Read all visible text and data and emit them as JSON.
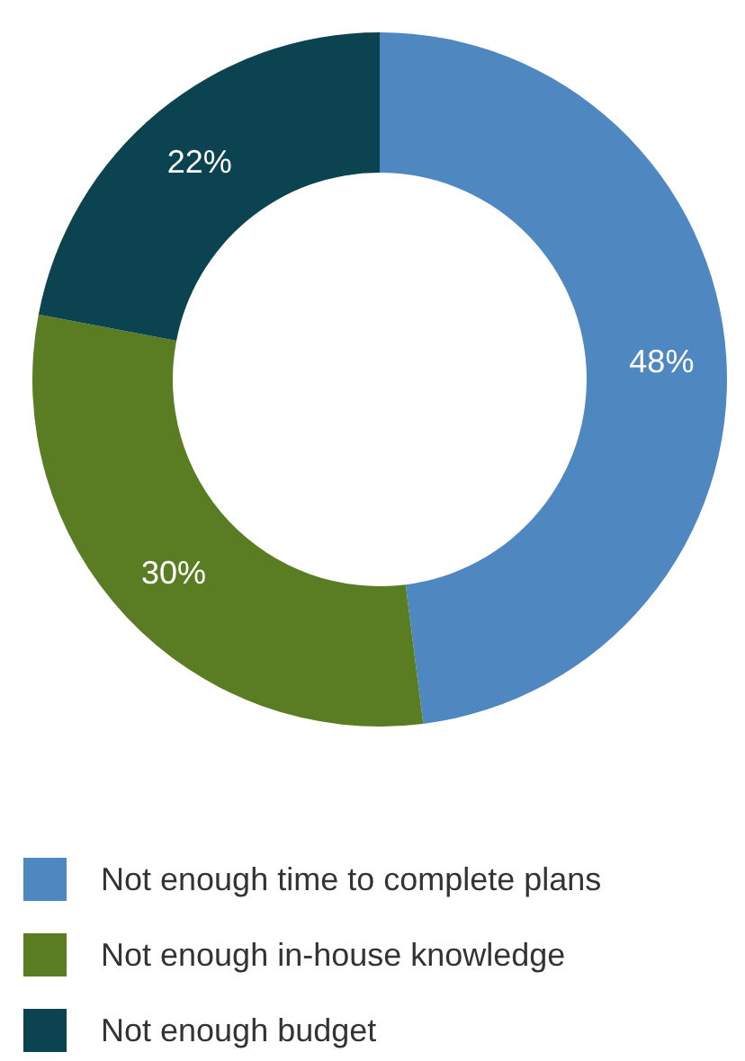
{
  "chart_data": {
    "type": "donut",
    "categories": [
      "Not enough time to complete plans",
      "Not enough in-house knowledge",
      "Not enough budget"
    ],
    "values": [
      48,
      30,
      22
    ],
    "colors": [
      "#4f87c0",
      "#5a7d23",
      "#0b4450"
    ],
    "value_labels": [
      "48%",
      "30%",
      "22%"
    ],
    "legend": "bottom left"
  }
}
